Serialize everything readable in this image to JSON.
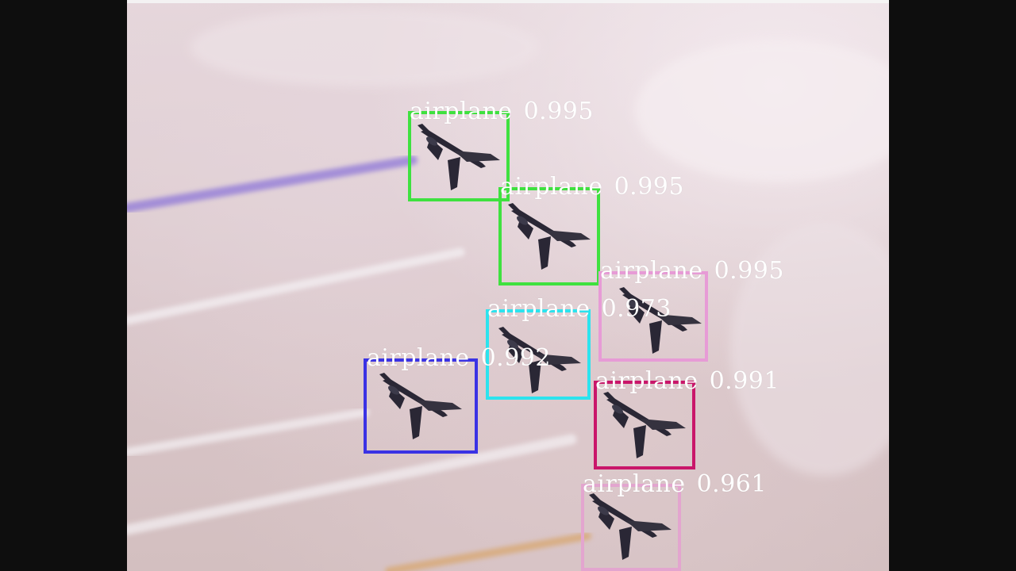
{
  "detections": [
    {
      "label": "airplane",
      "score": "0.995",
      "color": "#3fe13f"
    },
    {
      "label": "airplane",
      "score": "0.995",
      "color": "#3fe13f"
    },
    {
      "label": "airplane",
      "score": "0.995",
      "color": "#e79bd6"
    },
    {
      "label": "airplane",
      "score": "0.973",
      "color": "#2ce3ee"
    },
    {
      "label": "airplane",
      "score": "0.992",
      "color": "#3a32e4"
    },
    {
      "label": "airplane",
      "score": "0.991",
      "color": "#c9166a"
    },
    {
      "label": "airplane",
      "score": "0.961",
      "color": "#e3a5cf"
    }
  ],
  "scene": {
    "subject": "airplane-formation",
    "background": "overcast-sky",
    "trail_colors": [
      "#8f78d8",
      "#f1ecef",
      "#d8a56a"
    ]
  }
}
